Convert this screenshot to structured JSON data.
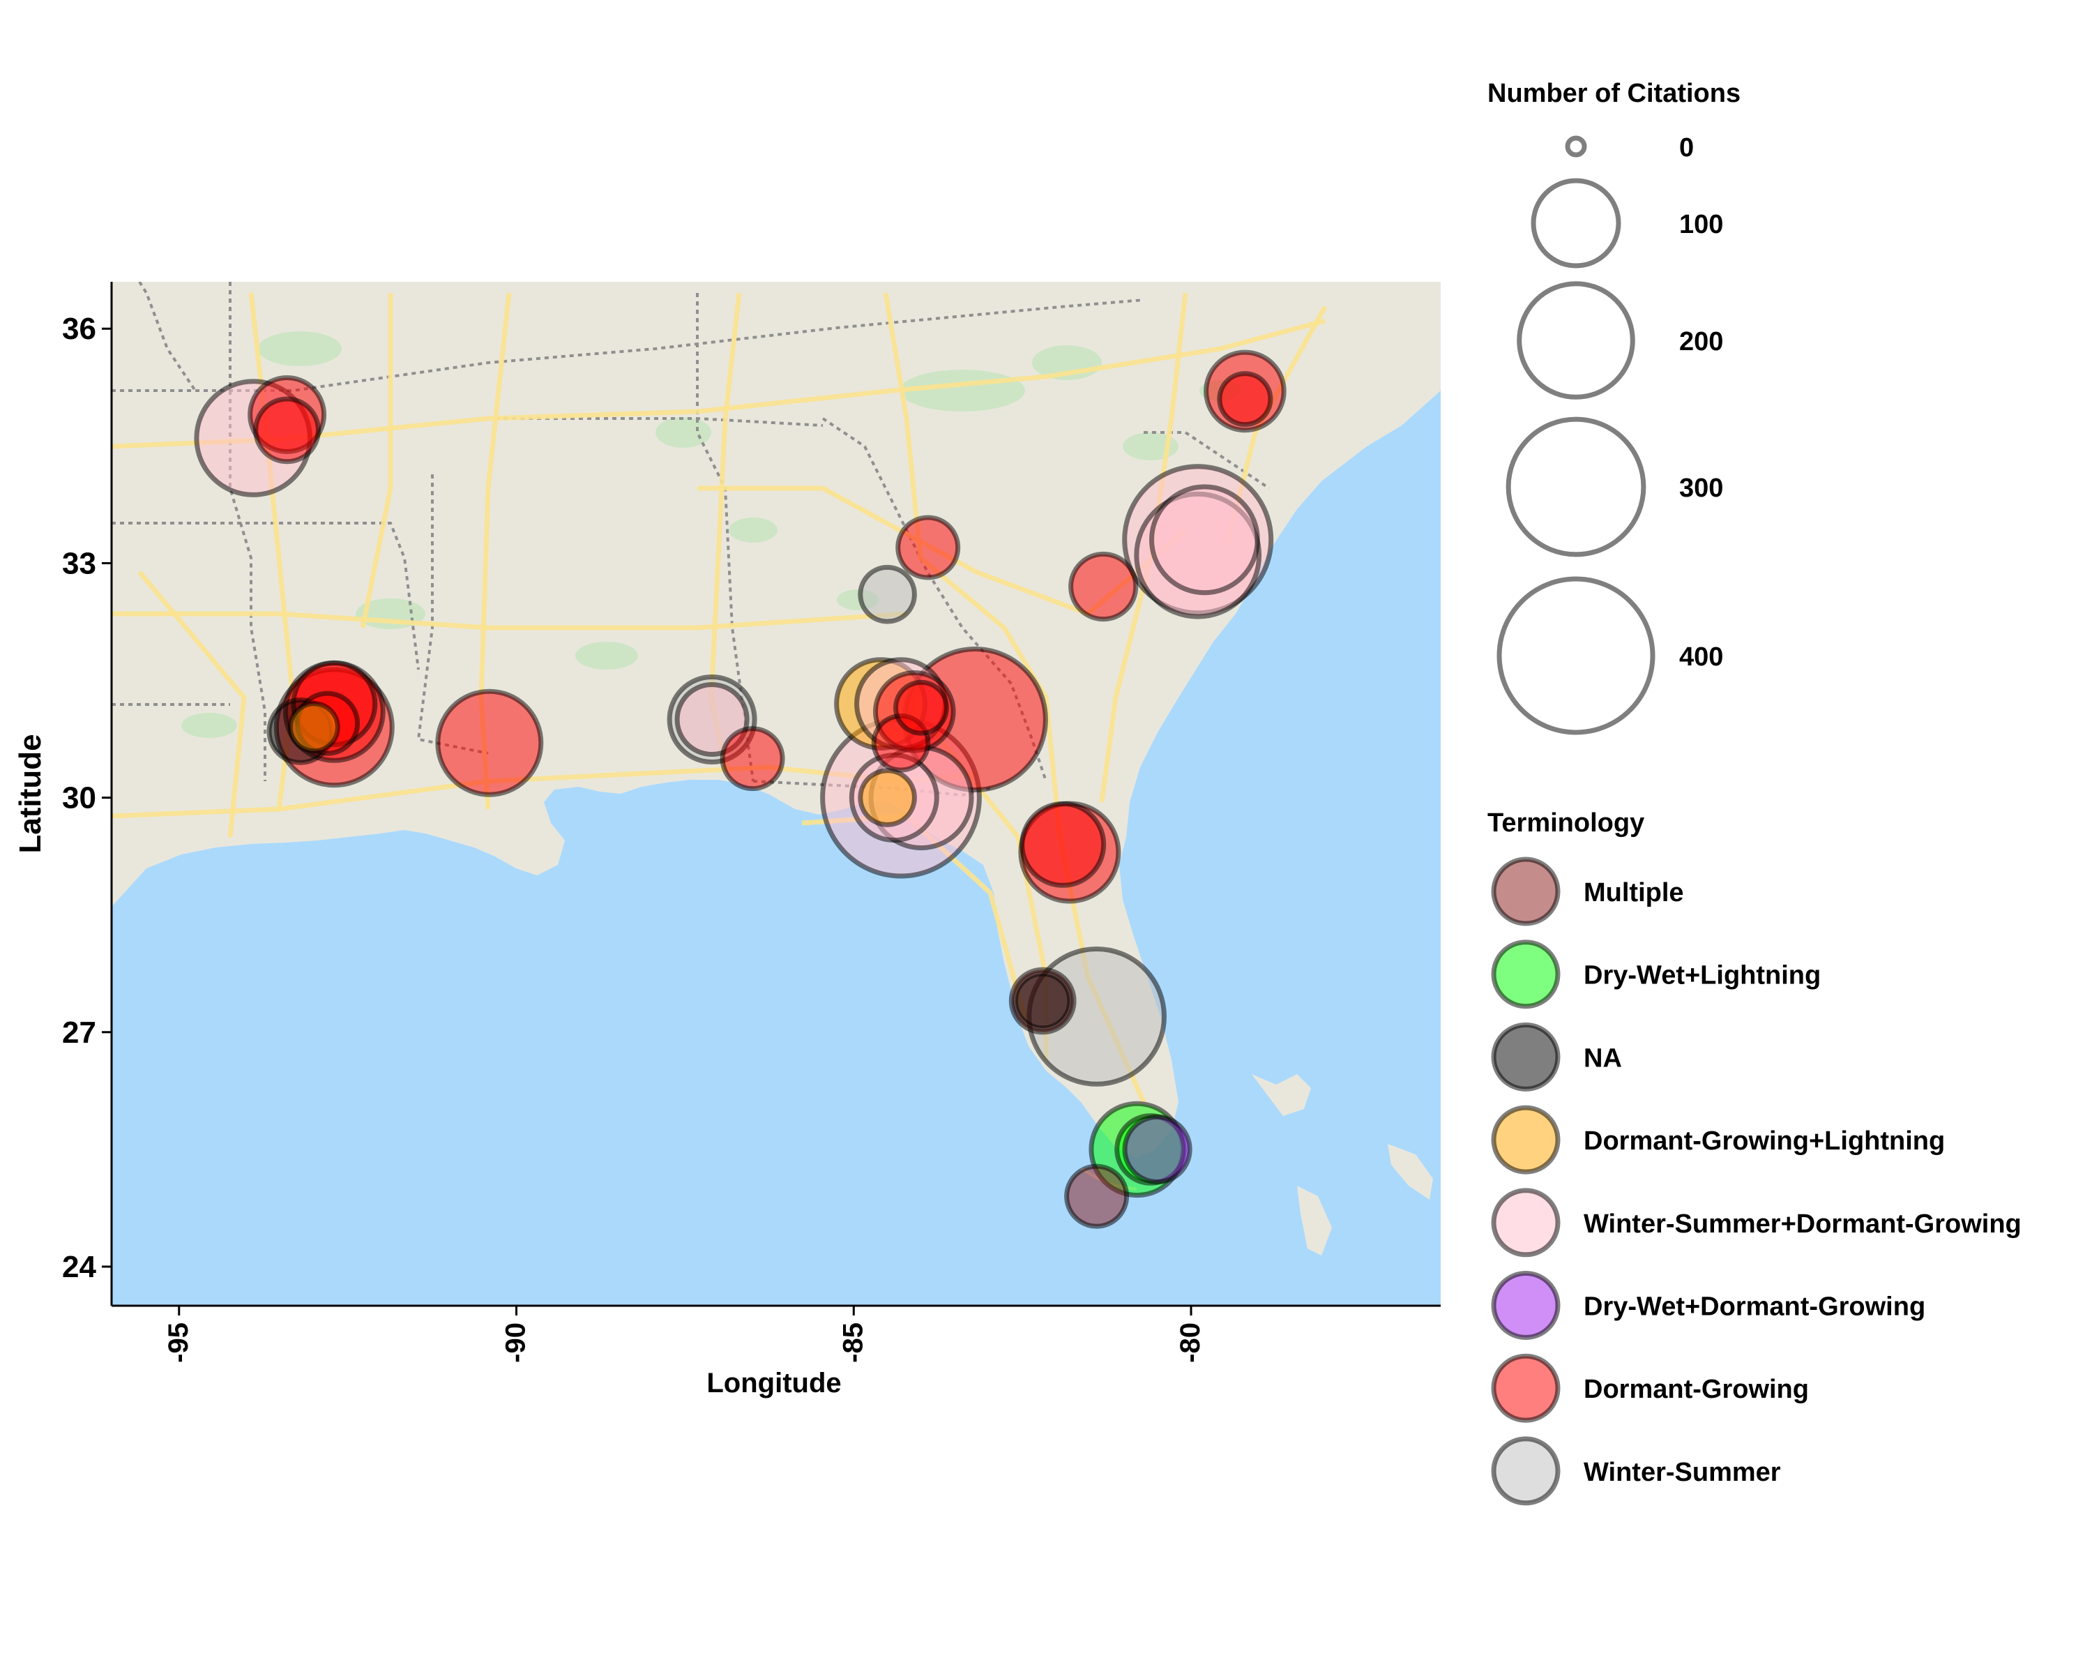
{
  "axes": {
    "xlabel": "Longitude",
    "ylabel": "Latitude",
    "x_ticks": [
      {
        "value": -95,
        "label": "-95"
      },
      {
        "value": -90,
        "label": "-90"
      },
      {
        "value": -85,
        "label": "-85"
      },
      {
        "value": -80,
        "label": "-80"
      }
    ],
    "y_ticks": [
      {
        "value": 24,
        "label": "24"
      },
      {
        "value": 27,
        "label": "27"
      },
      {
        "value": 30,
        "label": "30"
      },
      {
        "value": 33,
        "label": "33"
      },
      {
        "value": 36,
        "label": "36"
      }
    ]
  },
  "legend": {
    "size_title": "Number of Citations",
    "size_items": [
      {
        "value": 0,
        "label": "0"
      },
      {
        "value": 100,
        "label": "100"
      },
      {
        "value": 200,
        "label": "200"
      },
      {
        "value": 300,
        "label": "300"
      },
      {
        "value": 400,
        "label": "400"
      }
    ],
    "color_title": "Terminology",
    "color_items": [
      {
        "label": "Multiple",
        "color": "#8b1a1a",
        "fill_opacity": 0.5
      },
      {
        "label": "Dry-Wet+Lightning",
        "color": "#00ff00",
        "fill_opacity": 0.5
      },
      {
        "label": "NA",
        "color": "#000000",
        "fill_opacity": 0.5
      },
      {
        "label": "Dormant-Growing+Lightning",
        "color": "#ffa500",
        "fill_opacity": 0.5
      },
      {
        "label": "Winter-Summer+Dormant-Growing",
        "color": "#ffc0cb",
        "fill_opacity": 0.5
      },
      {
        "label": "Dry-Wet+Dormant-Growing",
        "color": "#a020f0",
        "fill_opacity": 0.5
      },
      {
        "label": "Dormant-Growing",
        "color": "#ff0000",
        "fill_opacity": 0.5
      },
      {
        "label": "Winter-Summer",
        "color": "#bebebe",
        "fill_opacity": 0.5
      }
    ]
  },
  "map_colors": {
    "land": "#e9e7dc",
    "water": "#abd9fc",
    "highway": "#fbe28f",
    "border": "#8f8f8f",
    "forest": "#c5e5bf"
  },
  "chart_data": {
    "type": "scatter",
    "title": "",
    "xlabel": "Longitude",
    "ylabel": "Latitude",
    "xlim": [
      -96.0,
      -76.3
    ],
    "ylim": [
      23.5,
      36.6
    ],
    "size_variable": "Number of Citations",
    "color_variable": "Terminology",
    "points": [
      {
        "lon": -93.9,
        "lat": 34.6,
        "citations": 200,
        "term": "Winter-Summer+Dormant-Growing"
      },
      {
        "lon": -93.4,
        "lat": 34.9,
        "citations": 70,
        "term": "Dormant-Growing"
      },
      {
        "lon": -93.4,
        "lat": 34.7,
        "citations": 45,
        "term": "Dormant-Growing"
      },
      {
        "lon": -92.7,
        "lat": 30.9,
        "citations": 210,
        "term": "Dormant-Growing"
      },
      {
        "lon": -92.7,
        "lat": 31.1,
        "citations": 140,
        "term": "Dormant-Growing"
      },
      {
        "lon": -92.7,
        "lat": 31.2,
        "citations": 90,
        "term": "Dormant-Growing"
      },
      {
        "lon": -92.8,
        "lat": 30.95,
        "citations": 40,
        "term": "Dormant-Growing"
      },
      {
        "lon": -93.2,
        "lat": 30.85,
        "citations": 45,
        "term": "NA"
      },
      {
        "lon": -93.0,
        "lat": 30.9,
        "citations": 20,
        "term": "Dormant-Growing+Lightning"
      },
      {
        "lon": -90.4,
        "lat": 30.7,
        "citations": 160,
        "term": "Dormant-Growing"
      },
      {
        "lon": -87.1,
        "lat": 31.0,
        "citations": 100,
        "term": "Winter-Summer"
      },
      {
        "lon": -87.1,
        "lat": 31.0,
        "citations": 60,
        "term": "Winter-Summer+Dormant-Growing"
      },
      {
        "lon": -86.5,
        "lat": 30.5,
        "citations": 40,
        "term": "Dormant-Growing"
      },
      {
        "lon": -84.6,
        "lat": 31.2,
        "citations": 110,
        "term": "Dormant-Growing+Lightning"
      },
      {
        "lon": -84.3,
        "lat": 31.2,
        "citations": 110,
        "term": "Winter-Summer+Dormant-Growing"
      },
      {
        "lon": -84.1,
        "lat": 31.1,
        "citations": 80,
        "term": "Dormant-Growing"
      },
      {
        "lon": -84.0,
        "lat": 31.15,
        "citations": 25,
        "term": "Dormant-Growing"
      },
      {
        "lon": -84.3,
        "lat": 30.7,
        "citations": 30,
        "term": "Dormant-Growing"
      },
      {
        "lon": -84.3,
        "lat": 30.0,
        "citations": 420,
        "term": "Winter-Summer+Dormant-Growing"
      },
      {
        "lon": -84.0,
        "lat": 30.0,
        "citations": 150,
        "term": "Winter-Summer+Dormant-Growing"
      },
      {
        "lon": -84.4,
        "lat": 30.0,
        "citations": 100,
        "term": "Winter-Summer+Dormant-Growing"
      },
      {
        "lon": -84.5,
        "lat": 30.0,
        "citations": 30,
        "term": "Dormant-Growing+Lightning"
      },
      {
        "lon": -84.5,
        "lat": 32.6,
        "citations": 30,
        "term": "Winter-Summer"
      },
      {
        "lon": -83.9,
        "lat": 33.2,
        "citations": 40,
        "term": "Dormant-Growing"
      },
      {
        "lon": -83.2,
        "lat": 31.0,
        "citations": 330,
        "term": "Dormant-Growing"
      },
      {
        "lon": -81.3,
        "lat": 32.7,
        "citations": 50,
        "term": "Dormant-Growing"
      },
      {
        "lon": -79.9,
        "lat": 33.3,
        "citations": 360,
        "term": "Winter-Summer+Dormant-Growing"
      },
      {
        "lon": -79.9,
        "lat": 33.1,
        "citations": 240,
        "term": "Winter-Summer+Dormant-Growing"
      },
      {
        "lon": -79.8,
        "lat": 33.3,
        "citations": 170,
        "term": "Winter-Summer+Dormant-Growing"
      },
      {
        "lon": -79.2,
        "lat": 35.2,
        "citations": 80,
        "term": "Dormant-Growing"
      },
      {
        "lon": -79.2,
        "lat": 35.1,
        "citations": 25,
        "term": "Dormant-Growing"
      },
      {
        "lon": -81.8,
        "lat": 29.3,
        "citations": 140,
        "term": "Dormant-Growing"
      },
      {
        "lon": -81.9,
        "lat": 29.4,
        "citations": 90,
        "term": "Dormant-Growing"
      },
      {
        "lon": -82.2,
        "lat": 27.4,
        "citations": 45,
        "term": "Multiple"
      },
      {
        "lon": -82.2,
        "lat": 27.4,
        "citations": 30,
        "term": "NA"
      },
      {
        "lon": -81.4,
        "lat": 27.2,
        "citations": 300,
        "term": "Winter-Summer"
      },
      {
        "lon": -80.5,
        "lat": 25.5,
        "citations": 50,
        "term": "Dry-Wet+Dormant-Growing"
      },
      {
        "lon": -80.8,
        "lat": 25.5,
        "citations": 120,
        "term": "Dry-Wet+Lightning"
      },
      {
        "lon": -80.6,
        "lat": 25.5,
        "citations": 55,
        "term": "Dry-Wet+Lightning"
      },
      {
        "lon": -81.4,
        "lat": 24.9,
        "citations": 40,
        "term": "Multiple"
      }
    ]
  }
}
